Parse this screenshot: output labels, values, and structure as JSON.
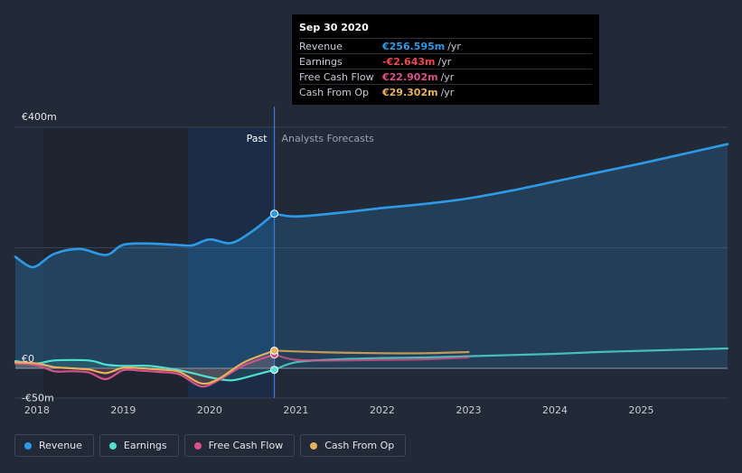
{
  "tooltip": {
    "date": "Sep 30 2020",
    "rows": [
      {
        "label": "Revenue",
        "value": "€256.595m",
        "unit": "/yr",
        "color": "#2d9ae8"
      },
      {
        "label": "Earnings",
        "value": "-€2.643m",
        "unit": "/yr",
        "color": "#f04a4a"
      },
      {
        "label": "Free Cash Flow",
        "value": "€22.902m",
        "unit": "/yr",
        "color": "#d8518a"
      },
      {
        "label": "Cash From Op",
        "value": "€29.302m",
        "unit": "/yr",
        "color": "#e8b15c"
      }
    ]
  },
  "legend": [
    {
      "label": "Revenue",
      "color": "#2d9ae8"
    },
    {
      "label": "Earnings",
      "color": "#4fe0cf"
    },
    {
      "label": "Free Cash Flow",
      "color": "#d8518a"
    },
    {
      "label": "Cash From Op",
      "color": "#e8b15c"
    }
  ],
  "chart_data": {
    "type": "line",
    "title": "",
    "xlabel": "",
    "ylabel": "",
    "ylim": [
      -50,
      400
    ],
    "xlim": [
      2017.75,
      2026.0
    ],
    "y_tick_labels": [
      "€400m",
      "€0",
      "-€50m"
    ],
    "y_ticks": [
      400,
      0,
      -50
    ],
    "x_tick_labels": [
      "2018",
      "2019",
      "2020",
      "2021",
      "2022",
      "2023",
      "2024",
      "2025"
    ],
    "x_ticks": [
      2018,
      2019,
      2020,
      2021,
      2022,
      2023,
      2024,
      2025
    ],
    "grid": true,
    "divider_x": 2020.75,
    "highlight_start": 2019.75,
    "region_labels": {
      "past": "Past",
      "forecast": "Analysts Forecasts"
    },
    "series": [
      {
        "name": "Revenue",
        "color": "#2d9ae8",
        "fill": true,
        "x": [
          2017.75,
          2017.9,
          2018.0,
          2018.2,
          2018.5,
          2018.8,
          2019.0,
          2019.3,
          2019.6,
          2019.8,
          2020.0,
          2020.25,
          2020.5,
          2020.75
        ],
        "y": [
          185,
          170,
          170,
          190,
          198,
          188,
          205,
          207,
          205,
          204,
          214,
          208,
          228,
          256.6
        ]
      },
      {
        "name": "Revenue forecast",
        "color": "#2d9ae8",
        "fill": true,
        "x": [
          2020.75,
          2021.0,
          2021.5,
          2022.0,
          2022.5,
          2023.0,
          2023.5,
          2024.0,
          2024.5,
          2025.0,
          2025.5,
          2026.0
        ],
        "y": [
          256.6,
          252,
          258,
          266,
          273,
          282,
          295,
          310,
          325,
          340,
          356,
          372
        ]
      },
      {
        "name": "Earnings",
        "color": "#4fe0cf",
        "x": [
          2017.75,
          2018.0,
          2018.2,
          2018.6,
          2018.8,
          2019.0,
          2019.3,
          2019.6,
          2019.8,
          2020.0,
          2020.25,
          2020.5,
          2020.75
        ],
        "y": [
          12,
          8,
          13,
          13,
          6,
          4,
          4,
          -2,
          -8,
          -15,
          -20,
          -12,
          -2.6
        ]
      },
      {
        "name": "Earnings forecast",
        "color": "#4fe0cf",
        "x": [
          2020.75,
          2021.0,
          2021.5,
          2022.0,
          2022.5,
          2023.0,
          2023.5,
          2024.0,
          2024.5,
          2025.0,
          2025.5,
          2026.0
        ],
        "y": [
          -2.6,
          10,
          15,
          17,
          18,
          20,
          22,
          24,
          27,
          29,
          31,
          33
        ]
      },
      {
        "name": "Free Cash Flow",
        "color": "#d8518a",
        "x": [
          2017.75,
          2018.0,
          2018.2,
          2018.4,
          2018.6,
          2018.8,
          2019.0,
          2019.2,
          2019.4,
          2019.65,
          2019.9,
          2020.1,
          2020.4,
          2020.75
        ],
        "y": [
          8,
          5,
          -5,
          -5,
          -7,
          -18,
          -3,
          -4,
          -6,
          -10,
          -30,
          -20,
          5,
          22.9
        ]
      },
      {
        "name": "Free Cash Flow forecast",
        "color": "#d8518a",
        "x": [
          2020.75,
          2021.0,
          2021.5,
          2022.0,
          2022.5,
          2023.0
        ],
        "y": [
          22.9,
          14,
          13,
          14,
          15,
          18
        ]
      },
      {
        "name": "Cash From Op",
        "color": "#e8b15c",
        "x": [
          2017.75,
          2018.0,
          2018.2,
          2018.4,
          2018.6,
          2018.8,
          2019.0,
          2019.2,
          2019.4,
          2019.65,
          2019.9,
          2020.1,
          2020.4,
          2020.75
        ],
        "y": [
          10,
          8,
          2,
          0,
          -2,
          -8,
          1,
          0,
          -2,
          -6,
          -25,
          -18,
          10,
          29.3
        ]
      },
      {
        "name": "Cash From Op forecast",
        "color": "#e8b15c",
        "x": [
          2020.75,
          2021.0,
          2021.5,
          2022.0,
          2022.5,
          2023.0
        ],
        "y": [
          29.3,
          28,
          26,
          25,
          25,
          27
        ]
      }
    ]
  }
}
